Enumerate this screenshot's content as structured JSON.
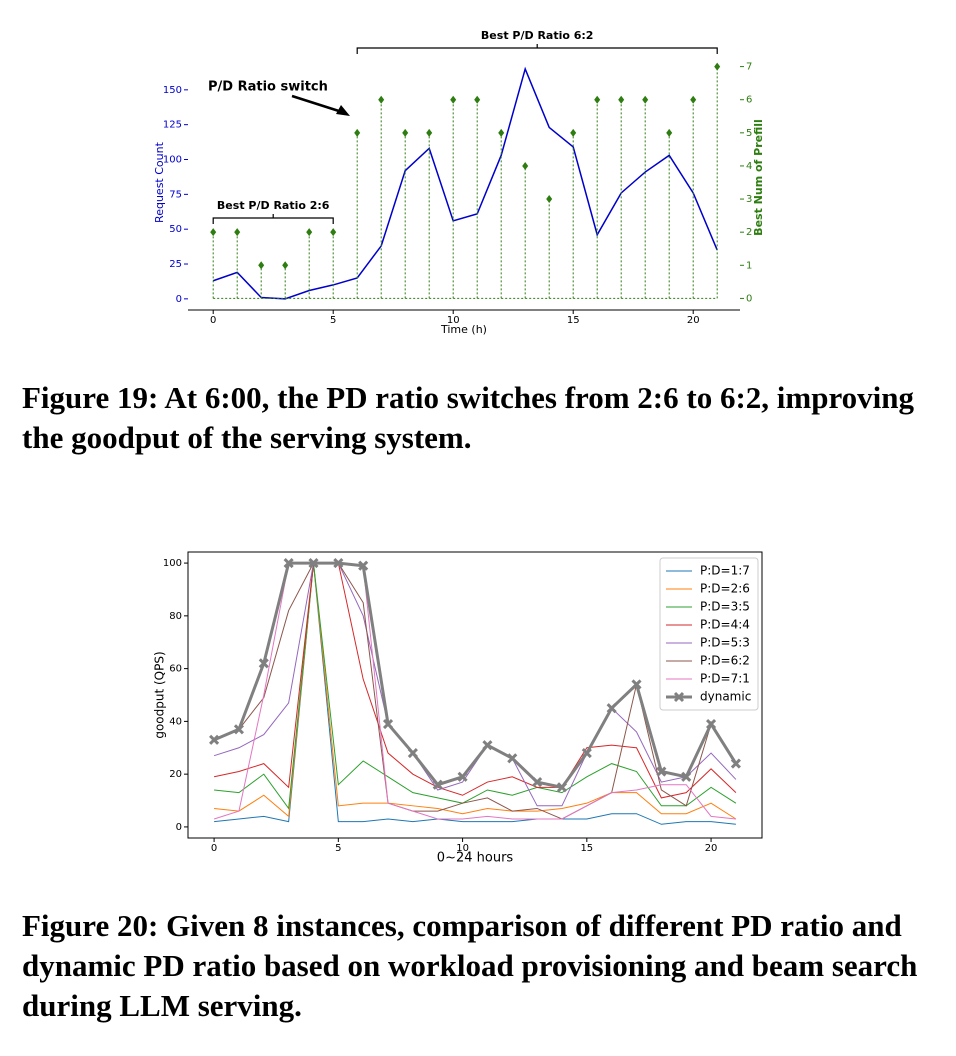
{
  "chart_data": [
    {
      "type": "line",
      "x": [
        0,
        1,
        2,
        3,
        4,
        5,
        6,
        7,
        8,
        9,
        10,
        11,
        12,
        13,
        14,
        15,
        16,
        17,
        18,
        19,
        20,
        21
      ],
      "xlabel": "Time (h)",
      "ylabel": "Request Count",
      "y2label": "Best Num of Prefill",
      "xlim": [
        -1.05,
        21.95
      ],
      "xticks": [
        0,
        5,
        10,
        15,
        20
      ],
      "ylim": [
        -8,
        175
      ],
      "yticks": [
        0,
        25,
        50,
        75,
        100,
        125,
        150
      ],
      "y2lim": [
        -0.35,
        7.35
      ],
      "y2ticks": [
        0,
        1,
        2,
        3,
        4,
        5,
        6,
        7
      ],
      "series": [
        {
          "color": "#0000cc",
          "axis": "y",
          "mark": "line",
          "values": [
            13,
            19,
            1,
            0,
            6,
            10,
            15,
            38,
            92,
            108,
            56,
            61,
            103,
            165,
            123,
            109,
            46,
            76,
            91,
            103,
            76,
            35
          ]
        },
        {
          "color": "#2e7d10",
          "axis": "y2",
          "mark": "stem",
          "values": [
            2,
            2,
            1,
            1,
            2,
            2,
            5,
            6,
            5,
            5,
            6,
            6,
            5,
            4,
            3,
            5,
            6,
            6,
            6,
            5,
            6,
            7
          ]
        }
      ],
      "annotation": "P/D Ratio switch",
      "brackets": [
        {
          "text": "Best P/D Ratio 2:6",
          "span": [
            0,
            5
          ]
        },
        {
          "text": "Best P/D Ratio 6:2",
          "span": [
            6,
            21
          ]
        }
      ],
      "caption": "Figure 19: At 6:00, the PD ratio switches from 2:6 to 6:2, improving the goodput of the serving system."
    },
    {
      "type": "line",
      "x": [
        0,
        1,
        2,
        3,
        4,
        5,
        6,
        7,
        8,
        9,
        10,
        11,
        12,
        13,
        14,
        15,
        16,
        17,
        18,
        19,
        20,
        21
      ],
      "xlabel": "0~24 hours",
      "ylabel": "goodput (QPS)",
      "xlim": [
        -1.05,
        22.05
      ],
      "xticks": [
        0,
        5,
        10,
        15,
        20
      ],
      "ylim": [
        -4.2,
        104.2
      ],
      "yticks": [
        0,
        20,
        40,
        60,
        80,
        100
      ],
      "legend": "upper right",
      "series": [
        {
          "name": "P:D=1:7",
          "color": "#1f77b4",
          "linewidth": 1,
          "values": [
            2,
            3,
            4,
            2,
            100,
            2,
            2,
            3,
            2,
            3,
            2,
            2,
            2,
            3,
            3,
            3,
            5,
            5,
            1,
            2,
            2,
            1
          ]
        },
        {
          "name": "P:D=2:6",
          "color": "#ff7f0e",
          "linewidth": 1,
          "values": [
            7,
            6,
            12,
            4,
            100,
            8,
            9,
            9,
            8,
            7,
            5,
            7,
            6,
            6,
            7,
            9,
            13,
            13,
            5,
            5,
            9,
            3
          ]
        },
        {
          "name": "P:D=3:5",
          "color": "#2ca02c",
          "linewidth": 1,
          "values": [
            14,
            13,
            20,
            7,
            100,
            16,
            25,
            19,
            13,
            11,
            9,
            14,
            12,
            15,
            13,
            19,
            24,
            21,
            8,
            8,
            15,
            9
          ]
        },
        {
          "name": "P:D=4:4",
          "color": "#d62728",
          "linewidth": 1,
          "values": [
            19,
            21,
            24,
            15,
            100,
            100,
            56,
            28,
            20,
            15,
            12,
            17,
            19,
            15,
            15,
            30,
            31,
            30,
            11,
            13,
            22,
            13
          ]
        },
        {
          "name": "P:D=5:3",
          "color": "#9467bd",
          "linewidth": 1,
          "values": [
            27,
            30,
            35,
            47,
            100,
            100,
            80,
            39,
            28,
            14,
            17,
            31,
            26,
            8,
            8,
            28,
            45,
            36,
            17,
            19,
            28,
            18
          ]
        },
        {
          "name": "P:D=6:2",
          "color": "#8c564b",
          "linewidth": 1,
          "values": [
            33,
            37,
            49,
            82,
            100,
            100,
            85,
            9,
            6,
            6,
            9,
            11,
            6,
            7,
            3,
            8,
            13,
            54,
            14,
            8,
            39,
            24
          ]
        },
        {
          "name": "P:D=7:1",
          "color": "#e377c2",
          "linewidth": 1,
          "values": [
            3,
            6,
            50,
            100,
            100,
            100,
            99,
            9,
            6,
            3,
            3,
            4,
            3,
            3,
            3,
            8,
            13,
            14,
            16,
            16,
            4,
            3
          ]
        },
        {
          "name": "dynamic",
          "color": "#808080",
          "linewidth": 3,
          "marker": "x",
          "values": [
            33,
            37,
            62,
            100,
            100,
            100,
            99,
            39,
            28,
            16,
            19,
            31,
            26,
            17,
            15,
            28,
            45,
            54,
            21,
            19,
            39,
            24
          ]
        }
      ],
      "caption": "Figure 20: Given 8 instances, comparison of different PD ratio and dynamic PD ratio based on workload provisioning and beam search during LLM serving."
    }
  ]
}
